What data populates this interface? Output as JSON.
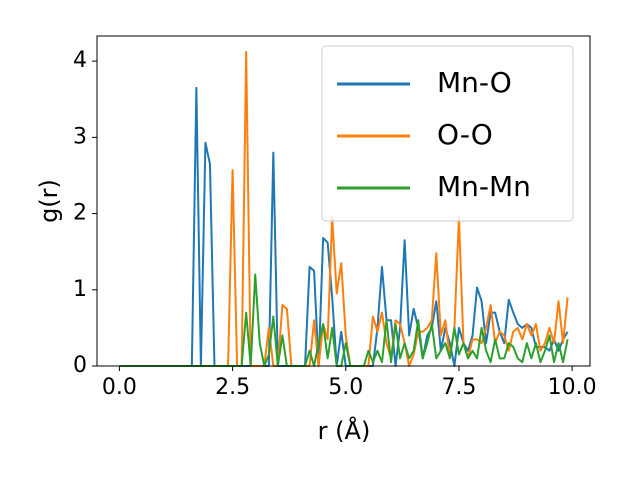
{
  "chart_data": {
    "type": "line",
    "xlabel": "r (Å)",
    "ylabel": "g(r)",
    "x": [
      0,
      0.1,
      0.2,
      0.3,
      0.4,
      0.5,
      0.6,
      0.7,
      0.8,
      0.9,
      1,
      1.1,
      1.2,
      1.3,
      1.4,
      1.5,
      1.6,
      1.7,
      1.8,
      1.9,
      2,
      2.1,
      2.2,
      2.3,
      2.4,
      2.5,
      2.6,
      2.7,
      2.8,
      2.9,
      3,
      3.1,
      3.2,
      3.3,
      3.4,
      3.5,
      3.6,
      3.7,
      3.8,
      3.9,
      4,
      4.1,
      4.2,
      4.3,
      4.4,
      4.5,
      4.6,
      4.7,
      4.8,
      4.9,
      5,
      5.1,
      5.2,
      5.3,
      5.4,
      5.5,
      5.6,
      5.7,
      5.8,
      5.9,
      6,
      6.1,
      6.2,
      6.3,
      6.4,
      6.5,
      6.6,
      6.7,
      6.8,
      6.9,
      7,
      7.1,
      7.2,
      7.3,
      7.4,
      7.5,
      7.6,
      7.7,
      7.8,
      7.9,
      8,
      8.1,
      8.2,
      8.3,
      8.4,
      8.5,
      8.6,
      8.7,
      8.8,
      8.9,
      9,
      9.1,
      9.2,
      9.3,
      9.4,
      9.5,
      9.6,
      9.7,
      9.8,
      9.9
    ],
    "series": [
      {
        "name": "Mn-O",
        "color": "#1f77b4",
        "values": [
          0,
          0,
          0,
          0,
          0,
          0,
          0,
          0,
          0,
          0,
          0,
          0,
          0,
          0,
          0,
          0,
          0,
          3.65,
          0,
          2.93,
          2.65,
          0,
          0,
          0,
          0,
          0,
          0,
          0,
          0,
          0,
          0,
          0,
          0,
          0,
          2.8,
          0,
          0,
          0,
          0,
          0,
          0,
          0,
          1.3,
          1.25,
          0,
          1.68,
          1.62,
          0.9,
          0,
          0.45,
          0,
          0,
          0,
          0,
          0,
          0,
          0,
          0.5,
          1.3,
          0.6,
          0.6,
          0,
          0.5,
          1.65,
          0.4,
          0.75,
          0.5,
          0.1,
          0.4,
          0.5,
          0.85,
          0.2,
          0.5,
          0.3,
          0,
          0.5,
          0.3,
          0.2,
          0.4,
          1.03,
          0.85,
          0.3,
          0.7,
          0.7,
          0.45,
          0.3,
          0.87,
          0.7,
          0.55,
          0.5,
          0.55,
          0.5,
          0.25,
          0.25,
          0.25,
          0.2,
          0.35,
          0.2,
          0.35,
          0.45
        ]
      },
      {
        "name": "O-O",
        "color": "#ff7f0e",
        "values": [
          0,
          0,
          0,
          0,
          0,
          0,
          0,
          0,
          0,
          0,
          0,
          0,
          0,
          0,
          0,
          0,
          0,
          0,
          0,
          0,
          0,
          0,
          0,
          0,
          0,
          2.57,
          0,
          0,
          4.12,
          0,
          0,
          0,
          0,
          0.5,
          0,
          0,
          0.8,
          0.75,
          0,
          0,
          0,
          0,
          0,
          0.6,
          0,
          0.55,
          0.35,
          1.95,
          0.95,
          1.35,
          0.4,
          0,
          0,
          0,
          0,
          0,
          0.65,
          0.45,
          0.7,
          0.3,
          0.1,
          0.6,
          0.55,
          0.3,
          0,
          0.15,
          0.45,
          0.45,
          0.5,
          0.6,
          1.48,
          0.4,
          0.6,
          0.1,
          0.5,
          1.95,
          0.3,
          0.1,
          0.35,
          0.35,
          0.3,
          0.5,
          0.8,
          0.3,
          0.45,
          0.4,
          0.2,
          0.45,
          0.5,
          0.35,
          0.55,
          0.4,
          0.55,
          0.2,
          0.3,
          0.5,
          0.3,
          0.85,
          0.3,
          0.9
        ]
      },
      {
        "name": "Mn-Mn",
        "color": "#2ca02c",
        "values": [
          0,
          0,
          0,
          0,
          0,
          0,
          0,
          0,
          0,
          0,
          0,
          0,
          0,
          0,
          0,
          0,
          0,
          0,
          0,
          0,
          0,
          0,
          0,
          0,
          0,
          0,
          0,
          0,
          0.7,
          0,
          1.2,
          0.3,
          0,
          0.15,
          0.65,
          0,
          0.4,
          0,
          0,
          0,
          0,
          0,
          0.2,
          0,
          0.3,
          0.55,
          0.1,
          0.5,
          0,
          0,
          0.3,
          0,
          0,
          0,
          0,
          0.2,
          0.05,
          0.2,
          0.05,
          0.6,
          0.05,
          0.55,
          0.1,
          0.3,
          0.1,
          0.2,
          0.6,
          0.1,
          0.3,
          0.55,
          0.1,
          0.2,
          0.3,
          0.1,
          0.5,
          0.15,
          0.3,
          0.1,
          0.2,
          0.1,
          0.5,
          0.2,
          0.05,
          0.35,
          0.1,
          0.1,
          0.3,
          0.25,
          0.1,
          0.05,
          0.3,
          0.1,
          0.3,
          0.05,
          0.2,
          0.4,
          0.05,
          0.3,
          0.05,
          0.35
        ]
      }
    ],
    "xlim": [
      -0.495,
      10.395
    ],
    "ylim": [
      0,
      4.33
    ],
    "xticks": [
      {
        "value": 0,
        "label": "0.0"
      },
      {
        "value": 2.5,
        "label": "2.5"
      },
      {
        "value": 5,
        "label": "5.0"
      },
      {
        "value": 7.5,
        "label": "7.5"
      },
      {
        "value": 10,
        "label": "10.0"
      }
    ],
    "yticks": [
      0,
      1,
      2,
      3,
      4
    ],
    "legend": "upper right"
  }
}
